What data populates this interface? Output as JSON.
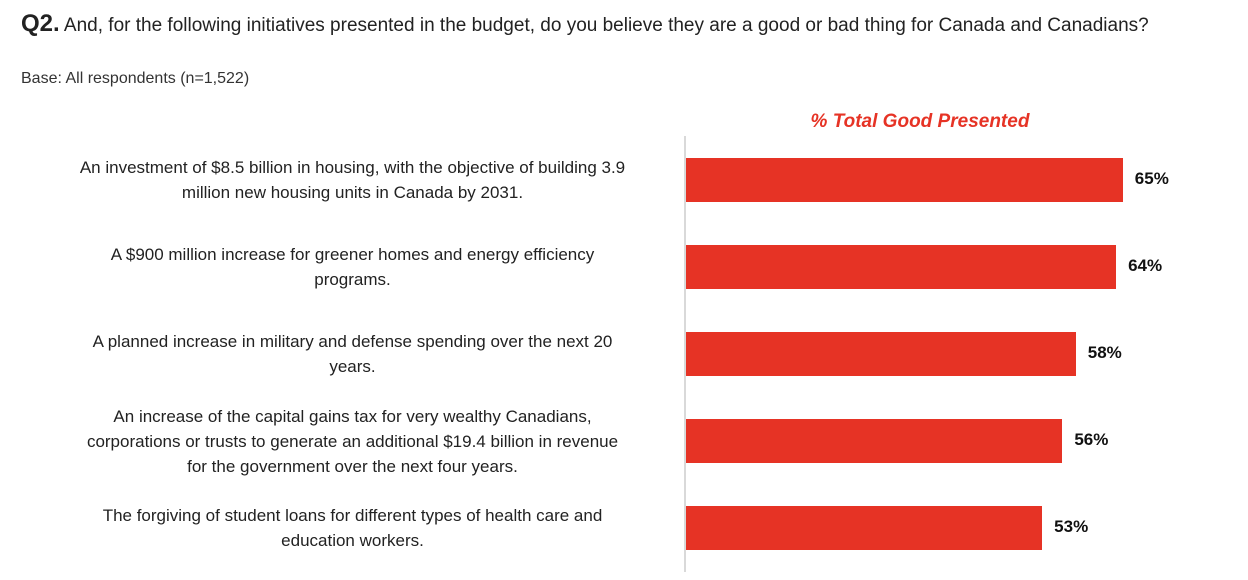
{
  "question": {
    "number": "Q2.",
    "text": "And, for the following initiatives presented in the budget, do you believe they are a good or bad thing for Canada and Canadians?",
    "base": "Base: All respondents (n=1,522)"
  },
  "chart_data": {
    "type": "bar",
    "orientation": "horizontal",
    "title": "% Total Good Presented",
    "categories": [
      [
        "An investment of $8.5 billion in housing, with the objective of building 3.9",
        "million new housing units in Canada by 2031."
      ],
      [
        "A $900 million increase for greener homes and energy efficiency",
        "programs."
      ],
      [
        "A planned increase in military and defense spending over the next 20",
        "years."
      ],
      [
        "An increase of the capital gains tax for very wealthy Canadians,",
        "corporations or trusts to generate an additional $19.4 billion in revenue",
        "for the government over the next four years."
      ],
      [
        "The forgiving of student loans for different types of health care and",
        "education workers."
      ]
    ],
    "values": [
      65,
      64,
      58,
      56,
      53
    ],
    "value_labels": [
      "65%",
      "64%",
      "58%",
      "56%",
      "53%"
    ],
    "xlim": [
      0,
      100
    ],
    "bar_color": "#e63325",
    "grid": false,
    "legend": "none"
  }
}
